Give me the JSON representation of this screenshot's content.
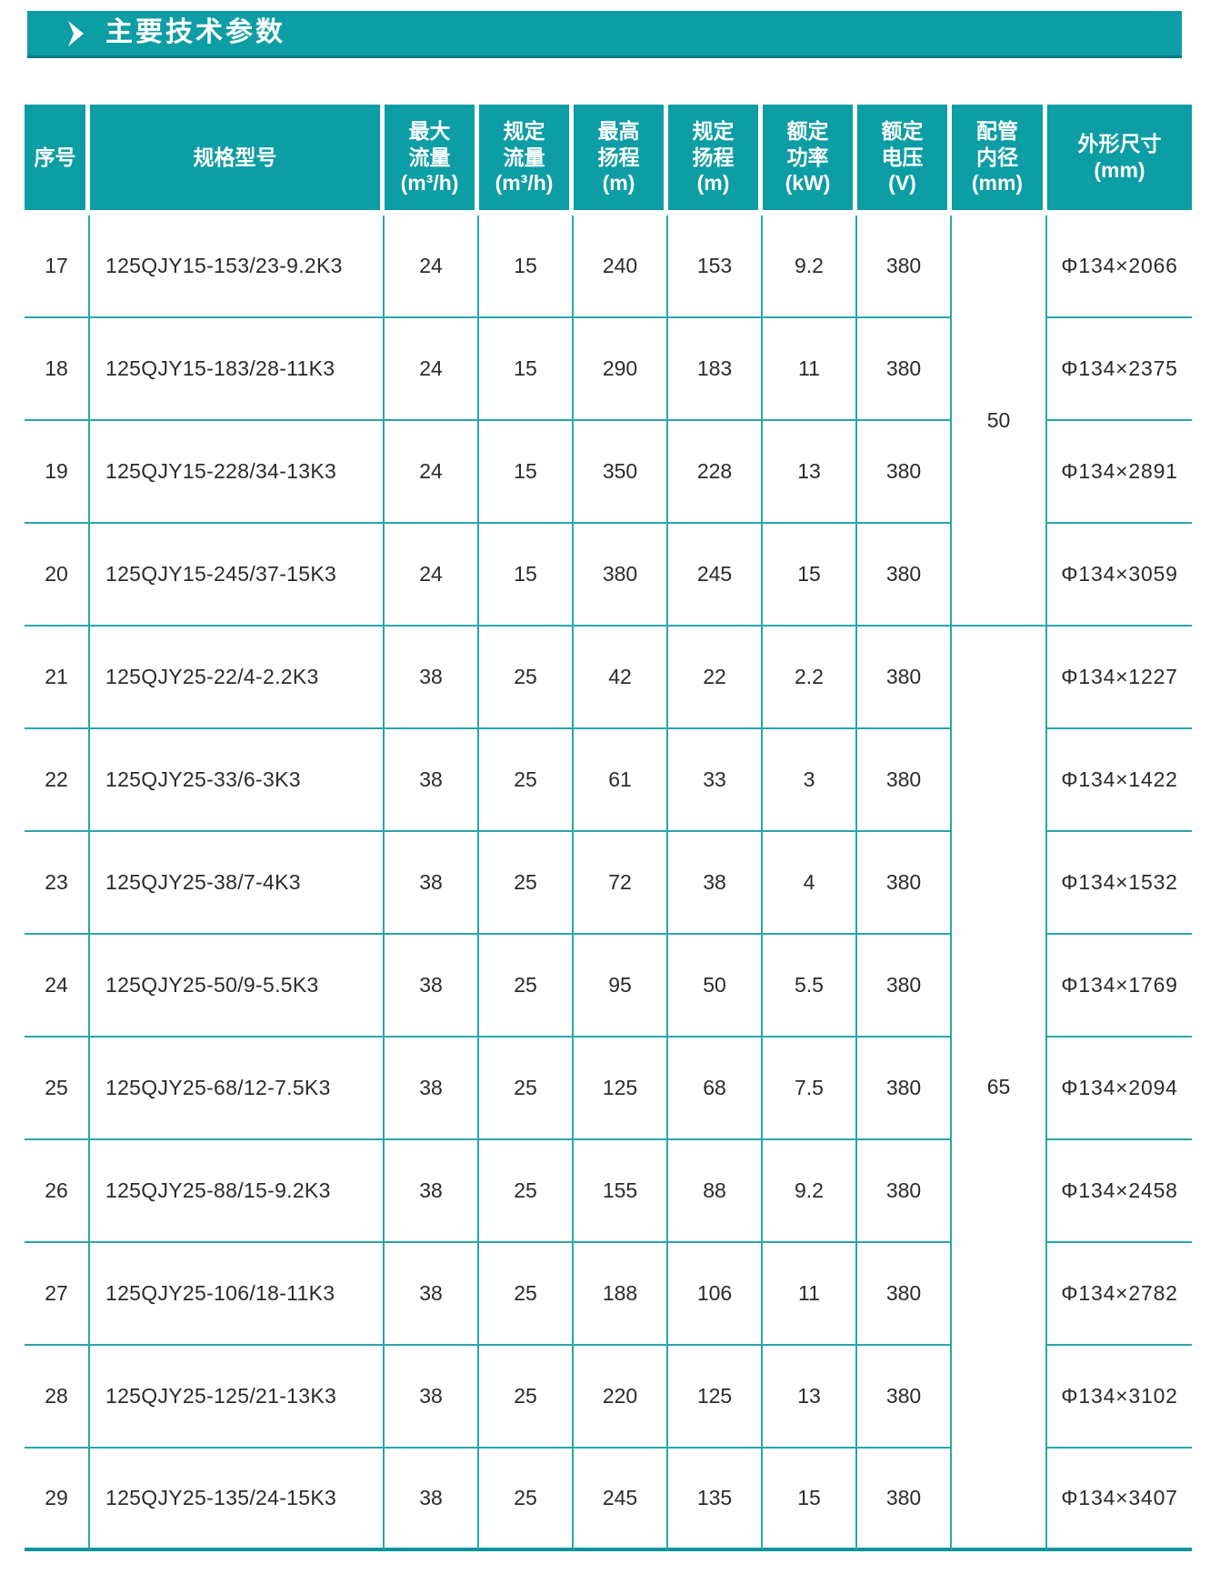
{
  "title_bar": {
    "label": "主要技术参数",
    "icon": "chevron-right-icon",
    "bg_color": "#0d9da4"
  },
  "colors": {
    "accent_teal": "#0d9da4",
    "grid_line": "#29a5ac",
    "header_text": "#ffffff",
    "body_text": "#2b2b2b"
  },
  "table": {
    "headers": [
      "序号",
      "规格型号",
      "最大\n流量\n(m³/h)",
      "规定\n流量\n(m³/h)",
      "最高\n扬程\n(m)",
      "规定\n扬程\n(m)",
      "额定\n功率\n(kW)",
      "额定\n电压\n(V)",
      "配管\n内径\n(mm)",
      "外形尺寸\n(mm)"
    ],
    "pipe_groups": [
      {
        "value": "50",
        "span": 4
      },
      {
        "value": "65",
        "span": 9
      }
    ],
    "rows": [
      {
        "no": "17",
        "model": "125QJY15-153/23-9.2K3",
        "max_flow": "24",
        "rated_flow": "15",
        "max_head": "240",
        "rated_head": "153",
        "power": "9.2",
        "voltage": "380",
        "dimensions": "Φ134×2066"
      },
      {
        "no": "18",
        "model": "125QJY15-183/28-11K3",
        "max_flow": "24",
        "rated_flow": "15",
        "max_head": "290",
        "rated_head": "183",
        "power": "11",
        "voltage": "380",
        "dimensions": "Φ134×2375"
      },
      {
        "no": "19",
        "model": "125QJY15-228/34-13K3",
        "max_flow": "24",
        "rated_flow": "15",
        "max_head": "350",
        "rated_head": "228",
        "power": "13",
        "voltage": "380",
        "dimensions": "Φ134×2891"
      },
      {
        "no": "20",
        "model": "125QJY15-245/37-15K3",
        "max_flow": "24",
        "rated_flow": "15",
        "max_head": "380",
        "rated_head": "245",
        "power": "15",
        "voltage": "380",
        "dimensions": "Φ134×3059"
      },
      {
        "no": "21",
        "model": "125QJY25-22/4-2.2K3",
        "max_flow": "38",
        "rated_flow": "25",
        "max_head": "42",
        "rated_head": "22",
        "power": "2.2",
        "voltage": "380",
        "dimensions": "Φ134×1227"
      },
      {
        "no": "22",
        "model": "125QJY25-33/6-3K3",
        "max_flow": "38",
        "rated_flow": "25",
        "max_head": "61",
        "rated_head": "33",
        "power": "3",
        "voltage": "380",
        "dimensions": "Φ134×1422"
      },
      {
        "no": "23",
        "model": "125QJY25-38/7-4K3",
        "max_flow": "38",
        "rated_flow": "25",
        "max_head": "72",
        "rated_head": "38",
        "power": "4",
        "voltage": "380",
        "dimensions": "Φ134×1532"
      },
      {
        "no": "24",
        "model": "125QJY25-50/9-5.5K3",
        "max_flow": "38",
        "rated_flow": "25",
        "max_head": "95",
        "rated_head": "50",
        "power": "5.5",
        "voltage": "380",
        "dimensions": "Φ134×1769"
      },
      {
        "no": "25",
        "model": "125QJY25-68/12-7.5K3",
        "max_flow": "38",
        "rated_flow": "25",
        "max_head": "125",
        "rated_head": "68",
        "power": "7.5",
        "voltage": "380",
        "dimensions": "Φ134×2094"
      },
      {
        "no": "26",
        "model": "125QJY25-88/15-9.2K3",
        "max_flow": "38",
        "rated_flow": "25",
        "max_head": "155",
        "rated_head": "88",
        "power": "9.2",
        "voltage": "380",
        "dimensions": "Φ134×2458"
      },
      {
        "no": "27",
        "model": "125QJY25-106/18-11K3",
        "max_flow": "38",
        "rated_flow": "25",
        "max_head": "188",
        "rated_head": "106",
        "power": "11",
        "voltage": "380",
        "dimensions": "Φ134×2782"
      },
      {
        "no": "28",
        "model": "125QJY25-125/21-13K3",
        "max_flow": "38",
        "rated_flow": "25",
        "max_head": "220",
        "rated_head": "125",
        "power": "13",
        "voltage": "380",
        "dimensions": "Φ134×3102"
      },
      {
        "no": "29",
        "model": "125QJY25-135/24-15K3",
        "max_flow": "38",
        "rated_flow": "25",
        "max_head": "245",
        "rated_head": "135",
        "power": "15",
        "voltage": "380",
        "dimensions": "Φ134×3407"
      }
    ]
  }
}
